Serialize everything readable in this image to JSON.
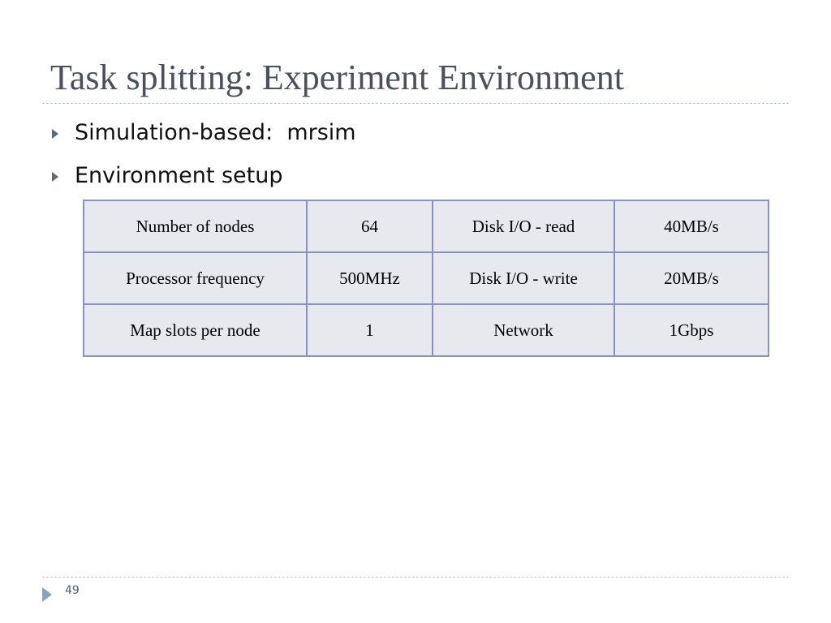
{
  "header": {
    "title": "Task splitting: Experiment Environment"
  },
  "bullets": [
    "Simulation-based:  mrsim",
    "Environment setup"
  ],
  "table": {
    "rows": [
      [
        "Number of nodes",
        "64",
        "Disk I/O - read",
        "40MB/s"
      ],
      [
        "Processor frequency",
        "500MHz",
        "Disk I/O - write",
        "20MB/s"
      ],
      [
        "Map slots per node",
        "1",
        "Network",
        "1Gbps"
      ]
    ]
  },
  "footer": {
    "page": "49"
  }
}
